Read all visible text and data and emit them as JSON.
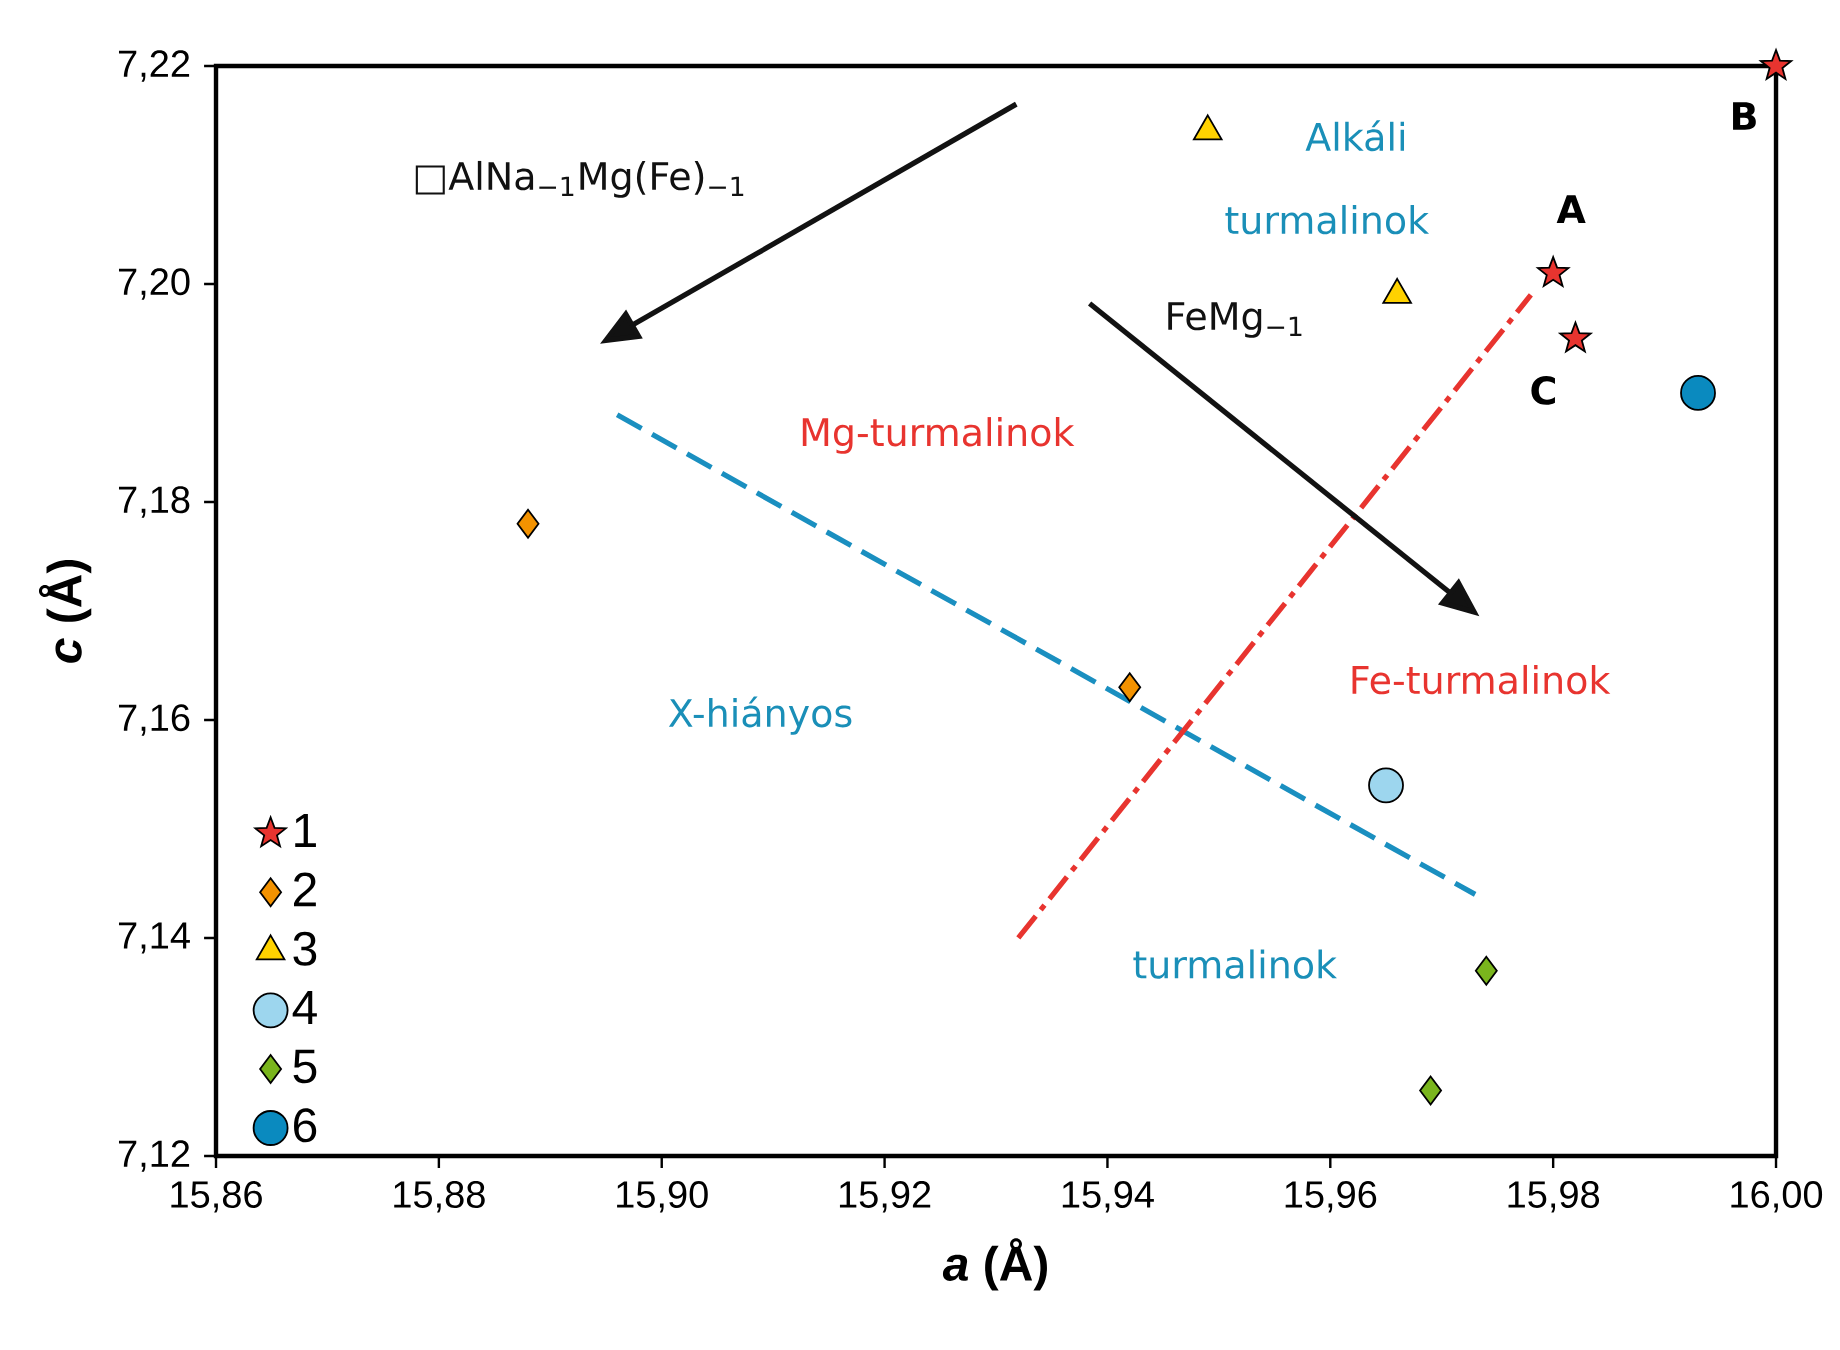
{
  "chart_data": {
    "type": "scatter",
    "xlabel": "*a* (Å)",
    "ylabel": "*c* (Å)",
    "xlim": [
      15.86,
      16.0
    ],
    "ylim": [
      7.12,
      7.22
    ],
    "xticks": [
      {
        "value": 15.86,
        "label": "15,86"
      },
      {
        "value": 15.88,
        "label": "15,88"
      },
      {
        "value": 15.9,
        "label": "15,90"
      },
      {
        "value": 15.92,
        "label": "15,92"
      },
      {
        "value": 15.94,
        "label": "15,94"
      },
      {
        "value": 15.96,
        "label": "15,96"
      },
      {
        "value": 15.98,
        "label": "15,98"
      },
      {
        "value": 16.0,
        "label": "16,00"
      }
    ],
    "yticks": [
      {
        "value": 7.12,
        "label": "7,12"
      },
      {
        "value": 7.14,
        "label": "7,14"
      },
      {
        "value": 7.16,
        "label": "7,16"
      },
      {
        "value": 7.18,
        "label": "7,18"
      },
      {
        "value": 7.2,
        "label": "7,20"
      },
      {
        "value": 7.22,
        "label": "7,22"
      }
    ],
    "legend": "bottom left",
    "series": [
      {
        "name": "1",
        "color": "#e8342f",
        "marker": "star",
        "x": [
          15.98,
          16.0,
          15.982
        ],
        "values": [
          7.201,
          7.22,
          7.195
        ]
      },
      {
        "name": "2",
        "color": "#f39200",
        "marker": "diamond",
        "x": [
          15.888,
          15.942
        ],
        "values": [
          7.178,
          7.163
        ]
      },
      {
        "name": "3",
        "color": "#ffd200",
        "marker": "triangle",
        "x": [
          15.949,
          15.966
        ],
        "values": [
          7.214,
          7.199
        ]
      },
      {
        "name": "4",
        "color": "#9dd6ee",
        "marker": "circle",
        "x": [
          15.965
        ],
        "values": [
          7.154
        ]
      },
      {
        "name": "5",
        "color": "#7ab51d",
        "marker": "diamond",
        "x": [
          15.974,
          15.969
        ],
        "values": [
          7.137,
          7.126
        ]
      },
      {
        "name": "6",
        "color": "#0a8abf",
        "marker": "circle",
        "x": [
          15.993
        ],
        "values": [
          7.19
        ]
      },
      {
        "type": "line",
        "color": "#1a8fc0",
        "line_style": "dashed",
        "x": [
          15.896,
          15.973
        ],
        "values": [
          7.188,
          7.144
        ]
      },
      {
        "type": "line",
        "color": "#e8342f",
        "line_style": "dashdot",
        "x": [
          15.932,
          15.978
        ],
        "values": [
          7.14,
          7.199
        ]
      }
    ],
    "annotations": [
      "□AlNa$_{−1}$Mg(Fe)$_{−1}$",
      "Alkáli",
      "turmalinok",
      "FeMg$_{−1}$",
      "Mg-turmalinok",
      "Fe-turmalinok",
      "X-hiányos",
      "turmalinok",
      {
        "text": "**A**",
        "x": 15.98,
        "y": 7.201
      },
      {
        "text": "**B**",
        "x": 16.0,
        "y": 7.22
      },
      {
        "text": "**C**",
        "x": 15.982,
        "y": 7.195
      }
    ]
  }
}
